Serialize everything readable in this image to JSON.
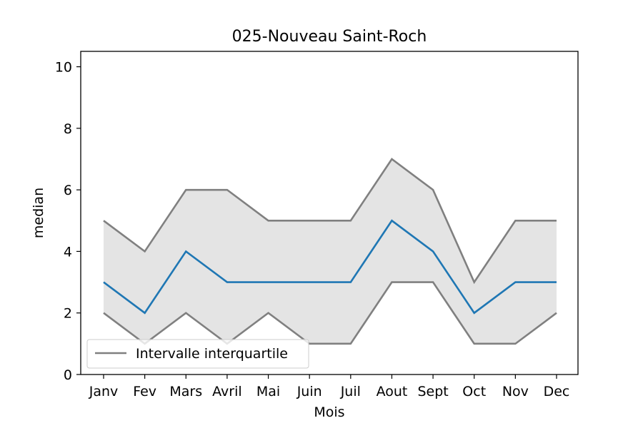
{
  "chart_data": {
    "type": "line",
    "title": "025-Nouveau Saint-Roch",
    "xlabel": "Mois",
    "ylabel": "median",
    "categories": [
      "Janv",
      "Fev",
      "Mars",
      "Avril",
      "Mai",
      "Juin",
      "Juil",
      "Aout",
      "Sept",
      "Oct",
      "Nov",
      "Dec"
    ],
    "ylim": [
      0,
      10.5
    ],
    "yticks": [
      0,
      2,
      4,
      6,
      8,
      10
    ],
    "grid": false,
    "legend": {
      "placement": "lower-left",
      "entries": [
        "Intervalle interquartile"
      ]
    },
    "series": [
      {
        "role": "median",
        "color": "#1f77b4",
        "values": [
          3,
          2,
          4,
          3,
          3,
          3,
          3,
          5,
          4,
          2,
          3,
          3
        ]
      },
      {
        "role": "q3",
        "color": "#808080",
        "values": [
          5,
          4,
          6,
          6,
          5,
          5,
          5,
          7,
          6,
          3,
          5,
          5
        ]
      },
      {
        "role": "q1",
        "color": "#808080",
        "values": [
          2,
          1,
          2,
          1,
          2,
          1,
          1,
          3,
          3,
          1,
          1,
          2
        ]
      }
    ],
    "band_color": "#e4e4e4"
  }
}
